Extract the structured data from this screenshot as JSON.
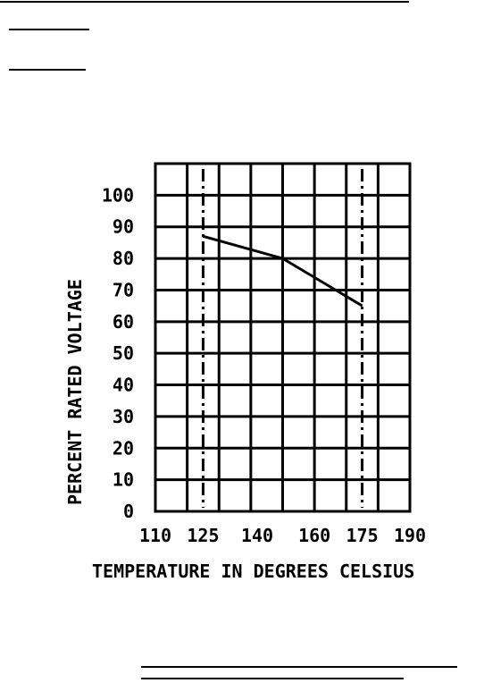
{
  "chart_data": {
    "type": "line",
    "title": "",
    "xlabel": "TEMPERATURE IN DEGREES CELSIUS",
    "ylabel": "PERCENT RATED VOLTAGE",
    "x_ticks": [
      "110",
      "125",
      "140",
      "160",
      "175",
      "190"
    ],
    "y_ticks": [
      "0",
      "10",
      "20",
      "30",
      "40",
      "50",
      "60",
      "70",
      "80",
      "90",
      "100"
    ],
    "grid": true,
    "reference_lines_x": [
      "125",
      "175"
    ],
    "series": [
      {
        "x": [
          125,
          150,
          175
        ],
        "y": [
          87,
          80,
          65
        ]
      }
    ]
  }
}
